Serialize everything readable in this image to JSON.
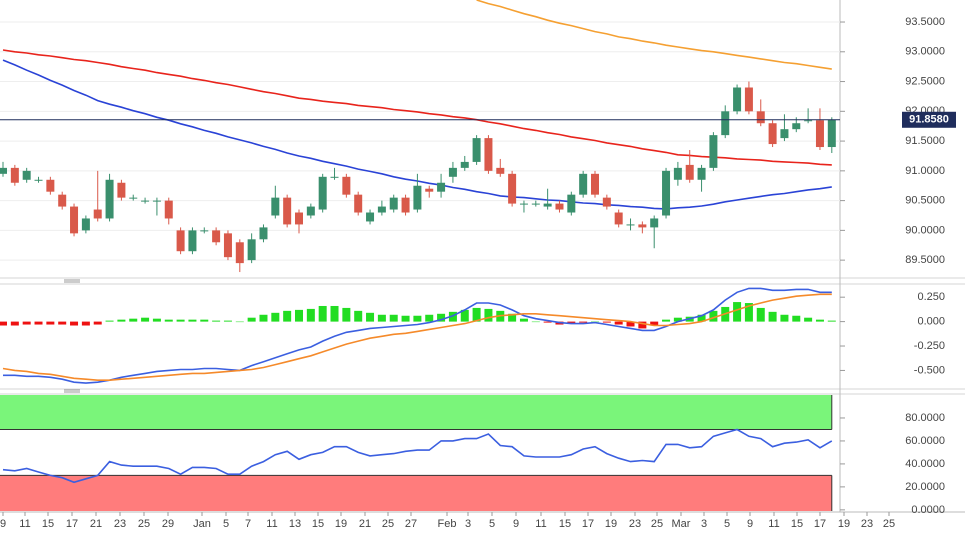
{
  "chart_data": [
    {
      "type": "candlestick",
      "open": [
        90.95,
        91.05,
        90.85,
        90.85,
        90.85,
        90.6,
        90.4,
        90.0,
        90.35,
        90.2,
        90.8,
        90.55,
        90.5,
        90.5,
        90.5,
        90.0,
        89.65,
        90.0,
        90.0,
        89.95,
        89.8,
        89.5,
        89.85,
        90.25,
        90.55,
        90.3,
        90.25,
        90.35,
        90.9,
        90.9,
        90.6,
        90.15,
        90.3,
        90.35,
        90.55,
        90.35,
        90.7,
        90.65,
        90.9,
        91.05,
        91.15,
        91.55,
        91.05,
        90.95,
        90.45,
        90.45,
        90.4,
        90.45,
        90.3,
        90.6,
        90.95,
        90.55,
        90.3,
        90.1,
        90.1,
        90.05,
        90.25,
        90.85,
        91.1,
        90.85,
        91.05,
        91.6,
        92.0,
        92.4,
        92.0,
        91.8,
        91.55,
        91.7,
        91.85,
        91.85,
        91.4
      ],
      "high": [
        91.15,
        91.1,
        91.05,
        90.9,
        90.9,
        90.65,
        90.45,
        90.25,
        91.0,
        90.95,
        90.85,
        90.6,
        90.55,
        90.55,
        90.55,
        90.05,
        90.05,
        90.05,
        90.05,
        90.0,
        89.85,
        89.95,
        90.1,
        90.75,
        90.6,
        90.35,
        90.45,
        90.95,
        91.05,
        90.95,
        90.65,
        90.35,
        90.5,
        90.6,
        90.6,
        90.95,
        90.75,
        90.95,
        91.15,
        91.25,
        91.6,
        91.6,
        91.2,
        91.0,
        90.5,
        90.5,
        90.7,
        90.5,
        90.65,
        91.0,
        91.0,
        90.6,
        90.35,
        90.2,
        90.15,
        90.25,
        91.05,
        91.15,
        91.35,
        91.1,
        91.65,
        92.1,
        92.45,
        92.5,
        92.2,
        91.85,
        91.95,
        91.9,
        92.05,
        92.05,
        91.9
      ],
      "low": [
        90.9,
        90.75,
        90.8,
        90.8,
        90.6,
        90.35,
        89.9,
        89.95,
        90.15,
        90.15,
        90.5,
        90.5,
        90.45,
        90.25,
        90.1,
        89.6,
        89.6,
        89.95,
        89.75,
        89.5,
        89.3,
        89.45,
        89.8,
        90.2,
        90.05,
        89.95,
        90.2,
        90.3,
        90.85,
        90.55,
        90.25,
        90.1,
        90.25,
        90.3,
        90.25,
        90.3,
        90.55,
        90.55,
        90.8,
        91.0,
        91.1,
        90.95,
        90.9,
        90.4,
        90.3,
        90.4,
        90.35,
        90.3,
        90.25,
        90.55,
        90.55,
        90.35,
        90.05,
        90.0,
        89.95,
        89.7,
        90.2,
        90.75,
        90.8,
        90.65,
        91.0,
        91.55,
        91.95,
        91.95,
        91.75,
        91.4,
        91.5,
        91.65,
        91.8,
        91.35,
        91.3
      ],
      "close": [
        91.05,
        90.8,
        91.0,
        90.85,
        90.65,
        90.4,
        89.95,
        90.2,
        90.2,
        90.85,
        90.55,
        90.55,
        90.5,
        90.5,
        90.2,
        89.65,
        90.0,
        90.0,
        89.8,
        89.55,
        89.45,
        89.85,
        90.05,
        90.55,
        90.1,
        90.1,
        90.4,
        90.9,
        90.9,
        90.6,
        90.3,
        90.3,
        90.4,
        90.55,
        90.3,
        90.75,
        90.65,
        90.8,
        91.05,
        91.15,
        91.55,
        91.0,
        90.95,
        90.45,
        90.45,
        90.45,
        90.45,
        90.35,
        90.6,
        90.95,
        90.6,
        90.4,
        90.1,
        90.1,
        90.05,
        90.2,
        91.0,
        91.05,
        90.85,
        91.05,
        91.6,
        92.0,
        92.4,
        92.0,
        91.8,
        91.45,
        91.7,
        91.8,
        91.85,
        91.4,
        91.858
      ],
      "up_color": "#3a8f6d",
      "down_color": "#d9594a",
      "series": [
        {
          "color": "#2a43d6",
          "values": [
            92.86,
            92.78,
            92.69,
            92.61,
            92.52,
            92.44,
            92.35,
            92.27,
            92.18,
            92.12,
            92.07,
            92.01,
            91.96,
            91.9,
            91.85,
            91.79,
            91.74,
            91.68,
            91.63,
            91.57,
            91.52,
            91.47,
            91.41,
            91.36,
            91.3,
            91.25,
            91.21,
            91.16,
            91.12,
            91.08,
            91.03,
            90.99,
            90.95,
            90.9,
            90.86,
            90.83,
            90.79,
            90.76,
            90.72,
            90.69,
            90.65,
            90.62,
            90.58,
            90.56,
            90.55,
            90.53,
            90.51,
            90.5,
            90.48,
            90.46,
            90.45,
            90.43,
            90.42,
            90.4,
            90.39,
            90.37,
            90.36,
            90.38,
            90.39,
            90.41,
            90.44,
            90.48,
            90.51,
            90.54,
            90.57,
            90.6,
            90.62,
            90.65,
            90.68,
            90.7,
            90.73
          ]
        },
        {
          "color": "#e8241c",
          "values": [
            93.03,
            93.0,
            92.98,
            92.95,
            92.93,
            92.9,
            92.87,
            92.85,
            92.82,
            92.79,
            92.75,
            92.72,
            92.69,
            92.65,
            92.62,
            92.59,
            92.55,
            92.52,
            92.48,
            92.45,
            92.41,
            92.37,
            92.33,
            92.3,
            92.26,
            92.22,
            92.2,
            92.17,
            92.15,
            92.13,
            92.1,
            92.08,
            92.06,
            92.03,
            92.01,
            91.99,
            91.96,
            91.94,
            91.91,
            91.89,
            91.86,
            91.82,
            91.79,
            91.75,
            91.71,
            91.68,
            91.64,
            91.61,
            91.57,
            91.54,
            91.51,
            91.47,
            91.44,
            91.41,
            91.37,
            91.34,
            91.31,
            91.27,
            91.26,
            91.24,
            91.23,
            91.22,
            91.2,
            91.19,
            91.18,
            91.16,
            91.15,
            91.14,
            91.13,
            91.11,
            91.1
          ]
        },
        {
          "color": "#f5a032",
          "values": [
            null,
            null,
            null,
            null,
            null,
            null,
            null,
            null,
            null,
            null,
            null,
            null,
            null,
            null,
            null,
            null,
            null,
            null,
            null,
            null,
            null,
            null,
            null,
            null,
            null,
            null,
            null,
            null,
            null,
            null,
            null,
            null,
            null,
            null,
            null,
            null,
            null,
            null,
            null,
            null,
            93.87,
            93.81,
            93.76,
            93.7,
            93.64,
            93.59,
            93.53,
            93.48,
            93.44,
            93.39,
            93.34,
            93.3,
            93.25,
            93.22,
            93.18,
            93.15,
            93.11,
            93.08,
            93.05,
            93.02,
            93.0,
            92.97,
            92.94,
            92.91,
            92.88,
            92.85,
            92.82,
            92.8,
            92.77,
            92.74,
            92.71
          ]
        }
      ],
      "last_price": {
        "value": 91.858,
        "label": "91.8580"
      },
      "last_price_color": "#1f2d5c",
      "ylim": [
        89.2,
        93.87
      ],
      "yticks": [
        {
          "value": 89.5,
          "label": "89.5000"
        },
        {
          "value": 90,
          "label": "90.0000"
        },
        {
          "value": 90.5,
          "label": "90.5000"
        },
        {
          "value": 91,
          "label": "91.0000"
        },
        {
          "value": 91.5,
          "label": "91.5000"
        },
        {
          "value": 92,
          "label": "92.0000"
        },
        {
          "value": 92.5,
          "label": "92.5000"
        },
        {
          "value": 93,
          "label": "93.0000"
        },
        {
          "value": 93.5,
          "label": "93.5000"
        }
      ],
      "grid": true
    },
    {
      "type": "macd",
      "histogram": [
        -0.04,
        -0.04,
        -0.03,
        -0.03,
        -0.03,
        -0.03,
        -0.04,
        -0.04,
        -0.03,
        0.01,
        0.02,
        0.03,
        0.04,
        0.03,
        0.02,
        0.02,
        0.02,
        0.02,
        0.01,
        0.01,
        0.0,
        0.04,
        0.07,
        0.09,
        0.11,
        0.12,
        0.13,
        0.16,
        0.16,
        0.14,
        0.11,
        0.09,
        0.07,
        0.07,
        0.06,
        0.06,
        0.07,
        0.08,
        0.1,
        0.12,
        0.14,
        0.13,
        0.11,
        0.08,
        0.03,
        0.0,
        -0.01,
        -0.03,
        -0.02,
        -0.01,
        0.0,
        -0.01,
        -0.03,
        -0.05,
        -0.07,
        -0.04,
        0.02,
        0.04,
        0.05,
        0.07,
        0.11,
        0.15,
        0.2,
        0.19,
        0.14,
        0.1,
        0.07,
        0.06,
        0.04,
        0.02,
        0.01
      ],
      "positive_color": "#22dd22",
      "negative_color": "#ee1111",
      "series": [
        {
          "color": "#3b5fe0",
          "values": [
            -0.55,
            -0.55,
            -0.56,
            -0.56,
            -0.57,
            -0.59,
            -0.62,
            -0.63,
            -0.62,
            -0.6,
            -0.57,
            -0.55,
            -0.53,
            -0.51,
            -0.5,
            -0.49,
            -0.49,
            -0.48,
            -0.48,
            -0.49,
            -0.5,
            -0.45,
            -0.41,
            -0.37,
            -0.33,
            -0.29,
            -0.26,
            -0.2,
            -0.15,
            -0.11,
            -0.09,
            -0.07,
            -0.06,
            -0.05,
            -0.04,
            -0.03,
            -0.01,
            0.02,
            0.06,
            0.12,
            0.19,
            0.19,
            0.17,
            0.12,
            0.06,
            0.03,
            0.01,
            -0.01,
            -0.02,
            -0.02,
            -0.01,
            -0.03,
            -0.05,
            -0.07,
            -0.09,
            -0.09,
            -0.05,
            0.0,
            0.03,
            0.06,
            0.12,
            0.22,
            0.3,
            0.34,
            0.34,
            0.32,
            0.32,
            0.33,
            0.33,
            0.3,
            0.3
          ]
        },
        {
          "color": "#f58a2a",
          "values": [
            -0.48,
            -0.5,
            -0.51,
            -0.53,
            -0.54,
            -0.56,
            -0.58,
            -0.59,
            -0.6,
            -0.6,
            -0.59,
            -0.58,
            -0.57,
            -0.56,
            -0.55,
            -0.54,
            -0.53,
            -0.53,
            -0.52,
            -0.51,
            -0.5,
            -0.49,
            -0.47,
            -0.44,
            -0.41,
            -0.38,
            -0.35,
            -0.31,
            -0.27,
            -0.23,
            -0.2,
            -0.17,
            -0.15,
            -0.13,
            -0.12,
            -0.1,
            -0.08,
            -0.06,
            -0.04,
            -0.02,
            0.01,
            0.04,
            0.06,
            0.07,
            0.08,
            0.08,
            0.07,
            0.06,
            0.05,
            0.04,
            0.03,
            0.02,
            0.01,
            0.0,
            -0.02,
            -0.04,
            -0.04,
            -0.03,
            -0.02,
            0.0,
            0.04,
            0.08,
            0.12,
            0.16,
            0.19,
            0.22,
            0.24,
            0.26,
            0.27,
            0.28,
            0.28
          ]
        }
      ],
      "ylim": [
        -0.69,
        0.385
      ],
      "yticks": [
        {
          "value": -0.5,
          "label": "-0.500"
        },
        {
          "value": -0.25,
          "label": "-0.250"
        },
        {
          "value": 0,
          "label": "0.000"
        },
        {
          "value": 0.25,
          "label": "0.250"
        }
      ]
    },
    {
      "type": "rsi",
      "series": [
        {
          "color": "#3b5fe0",
          "values": [
            35,
            34,
            36,
            33,
            30,
            28,
            24,
            27,
            30,
            42,
            39,
            38,
            38,
            38,
            36,
            31,
            37,
            37,
            36,
            31,
            31,
            38,
            42,
            48,
            51,
            44,
            48,
            50,
            55,
            55,
            50,
            47,
            48,
            49,
            51,
            52,
            52,
            60,
            60,
            62,
            62,
            66,
            56,
            55,
            47,
            46,
            46,
            46,
            48,
            53,
            55,
            49,
            45,
            42,
            43,
            42,
            57,
            57,
            54,
            55,
            64,
            67,
            70,
            64,
            62,
            55,
            58,
            59,
            61,
            54,
            60
          ]
        }
      ],
      "overbought": 70,
      "oversold": 30,
      "overbought_color": "#7af57a",
      "oversold_color": "#ff7c7c",
      "ylim": [
        -1,
        100
      ],
      "yticks": [
        {
          "value": 0,
          "label": "0.0000"
        },
        {
          "value": 20,
          "label": "20.0000"
        },
        {
          "value": 40,
          "label": "40.0000"
        },
        {
          "value": 60,
          "label": "60.0000"
        },
        {
          "value": 80,
          "label": "80.0000"
        }
      ],
      "x_labels": [
        "9",
        "11",
        "15",
        "17",
        "21",
        "23",
        "25",
        "29",
        "Jan",
        "5",
        "7",
        "11",
        "13",
        "15",
        "19",
        "21",
        "25",
        "27",
        "Feb",
        "3",
        "5",
        "9",
        "11",
        "15",
        "17",
        "19",
        "23",
        "25",
        "Mar",
        "3",
        "5",
        "9",
        "11",
        "15",
        "17",
        "19",
        "23",
        "25"
      ]
    }
  ]
}
